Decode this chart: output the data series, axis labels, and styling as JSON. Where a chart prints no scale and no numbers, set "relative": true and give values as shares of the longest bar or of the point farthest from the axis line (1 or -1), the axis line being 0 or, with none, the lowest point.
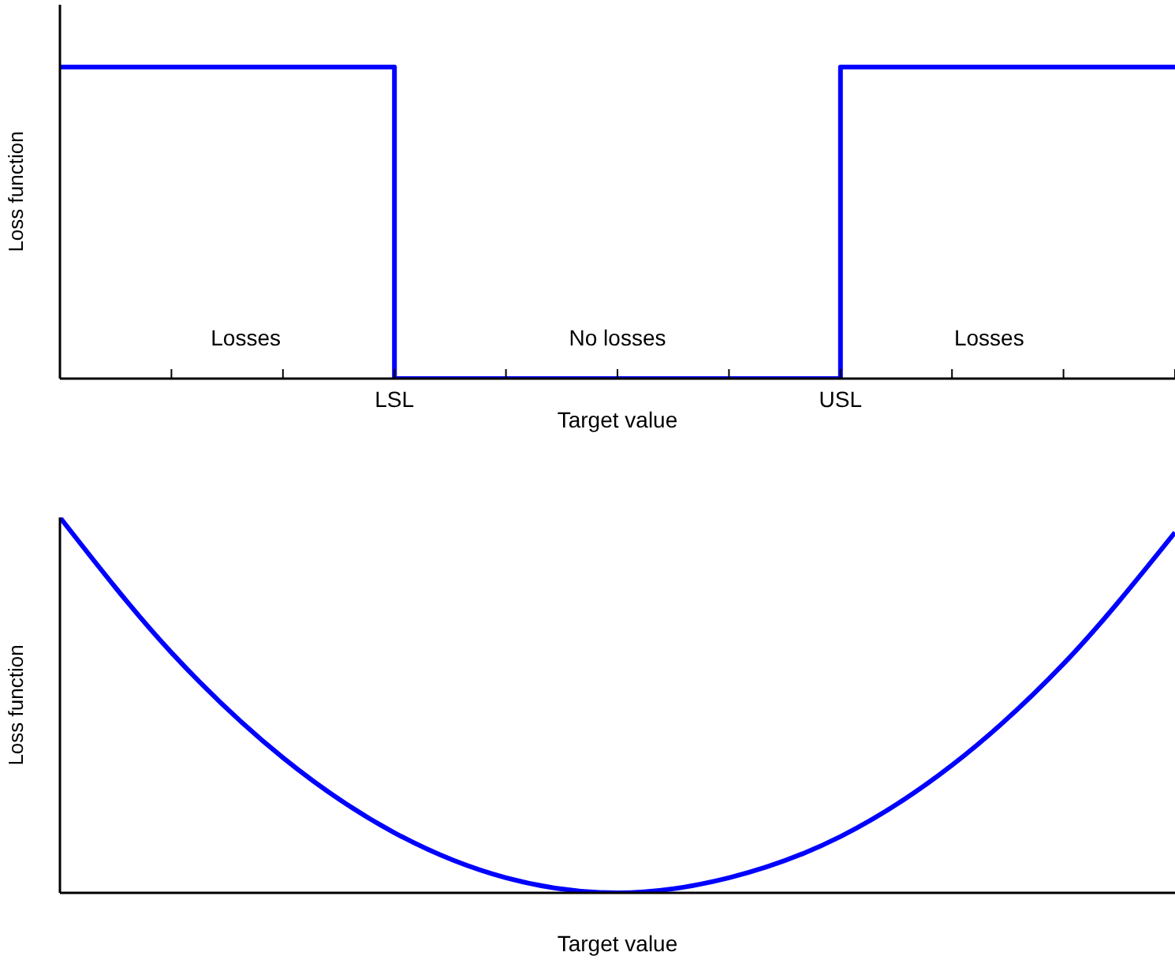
{
  "chart_data": [
    {
      "type": "step",
      "ylabel": "Loss function",
      "xlabel": "Target value",
      "relative": true,
      "categories": [
        null,
        null,
        null,
        "LSL",
        null,
        null,
        null,
        "USL",
        null,
        null,
        null
      ],
      "series": [
        {
          "color": "#0000ff",
          "values": [
            1,
            1,
            1,
            0,
            0,
            0,
            0,
            1,
            1,
            1,
            1
          ]
        }
      ],
      "tick_labels": "x",
      "marker": "none",
      "line_style": "solid",
      "annotations": [
        "Losses",
        "No losses",
        "Losses"
      ]
    },
    {
      "type": "line",
      "ylabel": "Loss function",
      "xlabel": "Target value",
      "relative": true,
      "categories": [
        null,
        null,
        null,
        null,
        null,
        null,
        null,
        null,
        null,
        null,
        null
      ],
      "series": [
        {
          "color": "#0000ff",
          "values": [
            1,
            0.64,
            0.36,
            0.16,
            0.04,
            0,
            0.04,
            0.15,
            0.34,
            0.61,
            0.96
          ]
        }
      ],
      "tick_labels": false,
      "marker": "none",
      "line_style": "solid"
    }
  ]
}
